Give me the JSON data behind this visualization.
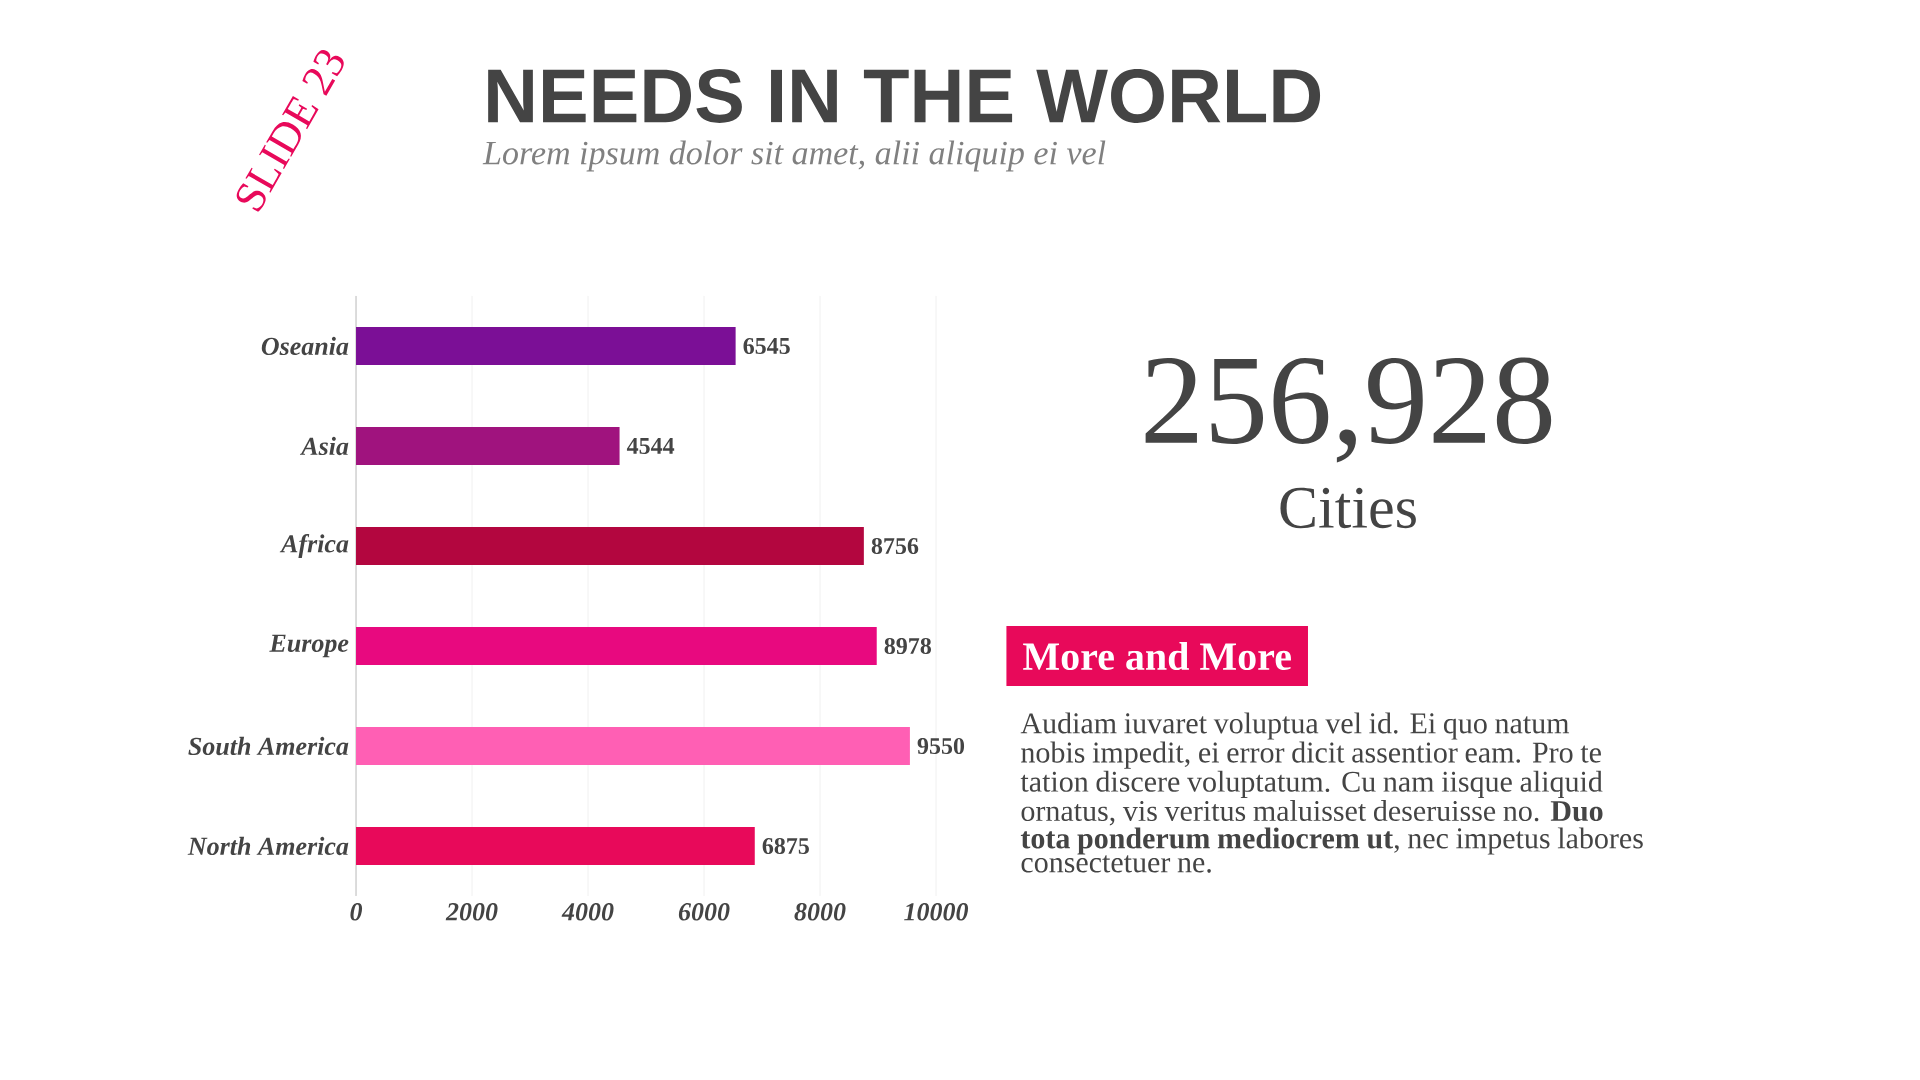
{
  "chart_data": {
    "type": "bar",
    "orientation": "horizontal",
    "title": "NEEDS IN THE WORLD",
    "subtitle": "Lorem ipsum dolor sit amet, alii aliquip ei vel",
    "categories": [
      "Oseania",
      "Asia",
      "Africa",
      "Europe",
      "South America",
      "North America"
    ],
    "values": [
      6545,
      4544,
      8756,
      8978,
      9550,
      6875
    ],
    "colors": [
      "#7b0f96",
      "#a0137e",
      "#b3063f",
      "#e8097f",
      "#ff5fb4",
      "#e8095a"
    ],
    "xlim": [
      0,
      10000
    ],
    "xticks": [
      0,
      2000,
      4000,
      6000,
      8000,
      10000
    ],
    "grid": "x",
    "data_labels": true,
    "annotations": [
      "SLIDE 23",
      "256,928",
      "Cities",
      "More and More",
      "Audiam iuvaret voluptua vel id. Ei quo natum nobis impedit, ei error dicit assentior eam. Pro te tation discere voluptatum. Cu nam iisque aliquid ornatus, vis veritus maluisset deseruisse no. **Duo tota ponderum mediocrem ut**, nec impetus labores consectetuer ne."
    ]
  }
}
